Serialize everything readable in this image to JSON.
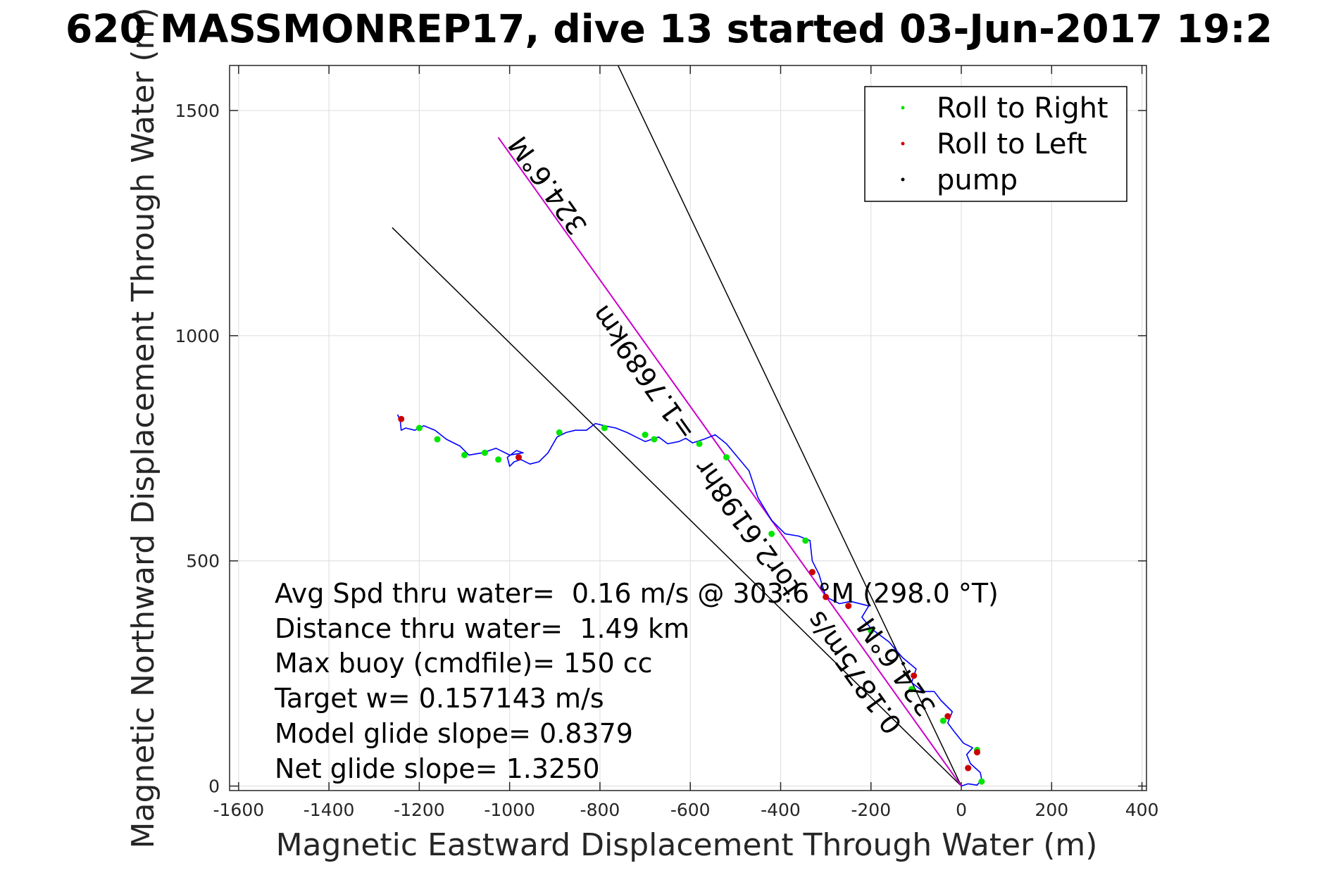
{
  "chart_data": {
    "type": "line",
    "title": "620 MASSMONREP17, dive 13 started 03-Jun-2017 19:2",
    "xlabel": "Magnetic Eastward Displacement Through Water (m)",
    "ylabel": "Magnetic Northward Displacement Through Water (m)",
    "xlim": [
      -1620,
      410
    ],
    "ylim": [
      -10,
      1600
    ],
    "x_ticks": [
      -1600,
      -1400,
      -1200,
      -1000,
      -800,
      -600,
      -400,
      -200,
      0,
      200,
      400
    ],
    "y_ticks": [
      0,
      500,
      1000,
      1500
    ],
    "x_tick_labels": [
      "-1600",
      "-1400",
      "-1200",
      "-1000",
      "-800",
      "-600",
      "-400",
      "-200",
      "0",
      "200",
      "400"
    ],
    "y_tick_labels": [
      "0",
      "500",
      "1000",
      "1500"
    ],
    "grid": true,
    "legend_position": "top-right",
    "legend": [
      {
        "label": "Roll to Right",
        "color": "#00e600"
      },
      {
        "label": "Roll to Left",
        "color": "#cc0000"
      },
      {
        "label": "pump",
        "color": "#000000"
      }
    ],
    "colors": {
      "track": "#0000ff",
      "roll_right": "#00e600",
      "roll_left": "#cc0000",
      "heading_line": "#cc00cc",
      "reference_lines": "#000000"
    },
    "series": [
      {
        "name": "track",
        "x": [
          0,
          15,
          35,
          45,
          42,
          20,
          12,
          25,
          5,
          -15,
          -30,
          -20,
          -45,
          -60,
          -85,
          -110,
          -100,
          -130,
          -160,
          -200,
          -220,
          -205,
          -245,
          -270,
          -300,
          -315,
          -330,
          -335,
          -360,
          -390,
          -420,
          -450,
          -470,
          -495,
          -520,
          -545,
          -570,
          -595,
          -610,
          -625,
          -650,
          -670,
          -700,
          -720,
          -740,
          -765,
          -790,
          -810,
          -830,
          -855,
          -875,
          -895,
          -915,
          -935,
          -955,
          -975,
          -990,
          -1000,
          -1005,
          -985,
          -970,
          -1000,
          -1030,
          -1060,
          -1090,
          -1110,
          -1140,
          -1165,
          -1190,
          -1210,
          -1230,
          -1240,
          -1242,
          -1248
        ],
        "y": [
          0,
          5,
          2,
          15,
          30,
          50,
          70,
          85,
          95,
          120,
          140,
          165,
          190,
          210,
          210,
          230,
          260,
          285,
          320,
          350,
          375,
          400,
          410,
          405,
          420,
          470,
          500,
          545,
          555,
          560,
          590,
          640,
          700,
          730,
          760,
          780,
          770,
          762,
          772,
          765,
          760,
          775,
          765,
          775,
          785,
          795,
          800,
          805,
          790,
          790,
          785,
          775,
          740,
          720,
          715,
          725,
          720,
          710,
          730,
          745,
          740,
          735,
          750,
          740,
          735,
          755,
          770,
          790,
          800,
          790,
          795,
          790,
          810,
          825
        ]
      }
    ],
    "roll_right_points": {
      "x": [
        45,
        35,
        -40,
        -110,
        -200,
        -330,
        -345,
        -420,
        -520,
        -580,
        -680,
        -700,
        -790,
        -890,
        -1025,
        -1055,
        -1100,
        -1160,
        -1200
      ],
      "y": [
        10,
        80,
        145,
        215,
        345,
        475,
        545,
        560,
        730,
        760,
        770,
        780,
        795,
        785,
        725,
        740,
        735,
        770,
        795
      ]
    },
    "roll_left_points": {
      "x": [
        15,
        35,
        -30,
        -105,
        -250,
        -300,
        -330,
        -980,
        -1240
      ],
      "y": [
        40,
        75,
        155,
        245,
        400,
        420,
        475,
        730,
        815
      ]
    },
    "reference_lines": [
      {
        "x": [
          0,
          -760
        ],
        "y": [
          0,
          1600
        ]
      },
      {
        "x": [
          0,
          -1260
        ],
        "y": [
          0,
          1240
        ]
      },
      {
        "x": [
          0,
          -1025
        ],
        "y": [
          0,
          1440
        ]
      }
    ],
    "heading_line": {
      "x": [
        0,
        -1025
      ],
      "y": [
        0,
        1440
      ]
    },
    "line_labels": [
      "324.6°M",
      "=1.7689km",
      "324.6°M",
      "0.1875m/s",
      "tor2.6198hr"
    ],
    "annotations": [
      "Avg Spd thru water=  0.16 m/s @ 303.6 °M (298.0 °T)",
      "Distance thru water=  1.49 km",
      "Max buoy (cmdfile)= 150 cc",
      "Target w= 0.157143 m/s",
      "Model glide slope= 0.8379",
      "Net glide slope= 1.3250"
    ]
  }
}
